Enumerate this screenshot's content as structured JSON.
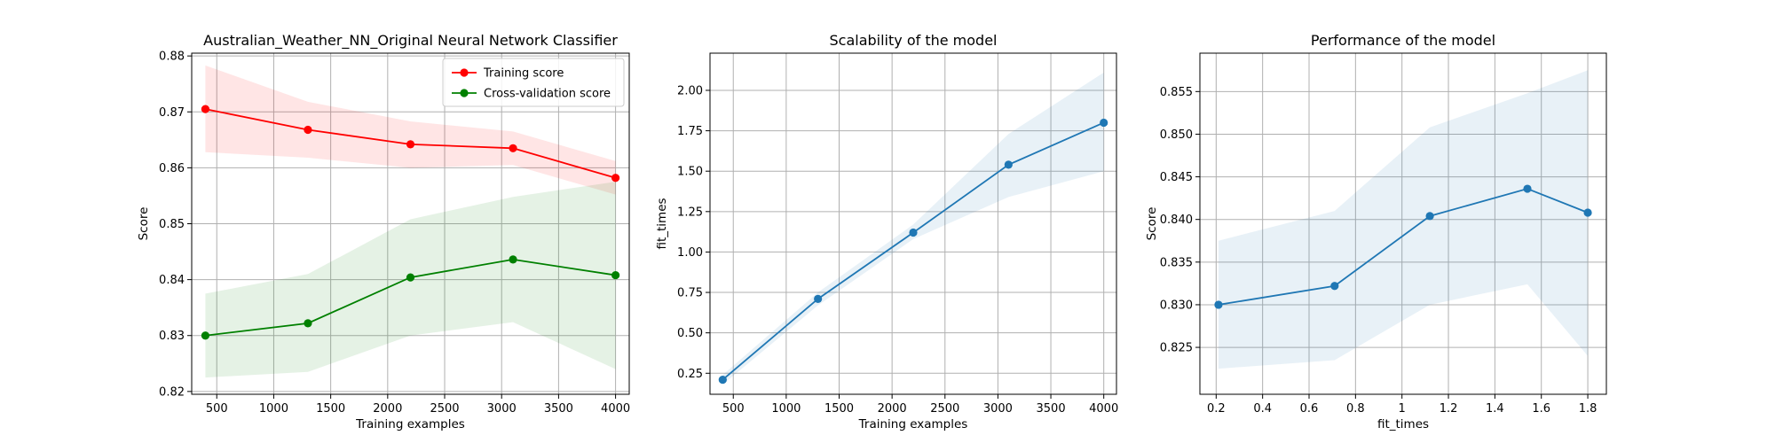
{
  "chart_data": [
    {
      "type": "line",
      "title": "Australian_Weather_NN_Original Neural Network Classifier",
      "xlabel": "Training examples",
      "ylabel": "Score",
      "xlim": [
        280,
        4120
      ],
      "ylim": [
        0.8195,
        0.8805
      ],
      "xticks": [
        500,
        1000,
        1500,
        2000,
        2500,
        3000,
        3500,
        4000
      ],
      "yticks": [
        0.82,
        0.83,
        0.84,
        0.85,
        0.86,
        0.87,
        0.88
      ],
      "ytick_decimals": 2,
      "grid": true,
      "legend": "top-right",
      "x": [
        400,
        1300,
        2200,
        3100,
        4000
      ],
      "series": [
        {
          "name": "Training score",
          "color": "#ff0000",
          "band_color": "#ff0000",
          "values": [
            0.8705,
            0.8668,
            0.8642,
            0.8635,
            0.8582
          ],
          "upper": [
            0.8783,
            0.8718,
            0.8683,
            0.8665,
            0.8612
          ],
          "lower": [
            0.8628,
            0.8618,
            0.86,
            0.8605,
            0.8552
          ]
        },
        {
          "name": "Cross-validation score",
          "color": "#008000",
          "band_color": "#008000",
          "values": [
            0.83,
            0.8322,
            0.8404,
            0.8436,
            0.8408
          ],
          "upper": [
            0.8375,
            0.841,
            0.8508,
            0.8548,
            0.8575
          ],
          "lower": [
            0.8225,
            0.8235,
            0.83,
            0.8324,
            0.824
          ]
        }
      ]
    },
    {
      "type": "line",
      "title": "Scalability of the model",
      "xlabel": "Training examples",
      "ylabel": "fit_times",
      "xlim": [
        280,
        4120
      ],
      "ylim": [
        0.12,
        2.23
      ],
      "xticks": [
        500,
        1000,
        1500,
        2000,
        2500,
        3000,
        3500,
        4000
      ],
      "yticks": [
        0.25,
        0.5,
        0.75,
        1.0,
        1.25,
        1.5,
        1.75,
        2.0
      ],
      "ytick_decimals": 2,
      "grid": true,
      "x": [
        400,
        1300,
        2200,
        3100,
        4000
      ],
      "series": [
        {
          "name": "",
          "color": "#1f77b4",
          "band_color": "#1f77b4",
          "values": [
            0.21,
            0.71,
            1.12,
            1.54,
            1.8
          ],
          "upper": [
            0.24,
            0.75,
            1.17,
            1.73,
            2.11
          ],
          "lower": [
            0.18,
            0.67,
            1.08,
            1.34,
            1.5
          ]
        }
      ]
    },
    {
      "type": "line",
      "title": "Performance of the model",
      "xlabel": "fit_times",
      "ylabel": "Score",
      "xlim": [
        0.13,
        1.88
      ],
      "ylim": [
        0.8195,
        0.8595
      ],
      "xticks": [
        0.2,
        0.4,
        0.6,
        0.8,
        1.0,
        1.2,
        1.4,
        1.6,
        1.8
      ],
      "yticks": [
        0.825,
        0.83,
        0.835,
        0.84,
        0.845,
        0.85,
        0.855
      ],
      "ytick_decimals": 3,
      "grid": true,
      "x": [
        0.21,
        0.71,
        1.12,
        1.54,
        1.8
      ],
      "series": [
        {
          "name": "",
          "color": "#1f77b4",
          "band_color": "#1f77b4",
          "values": [
            0.83,
            0.8322,
            0.8404,
            0.8436,
            0.8408
          ],
          "upper": [
            0.8375,
            0.841,
            0.8508,
            0.8548,
            0.8575
          ],
          "lower": [
            0.8225,
            0.8235,
            0.83,
            0.8324,
            0.824
          ]
        }
      ]
    }
  ]
}
